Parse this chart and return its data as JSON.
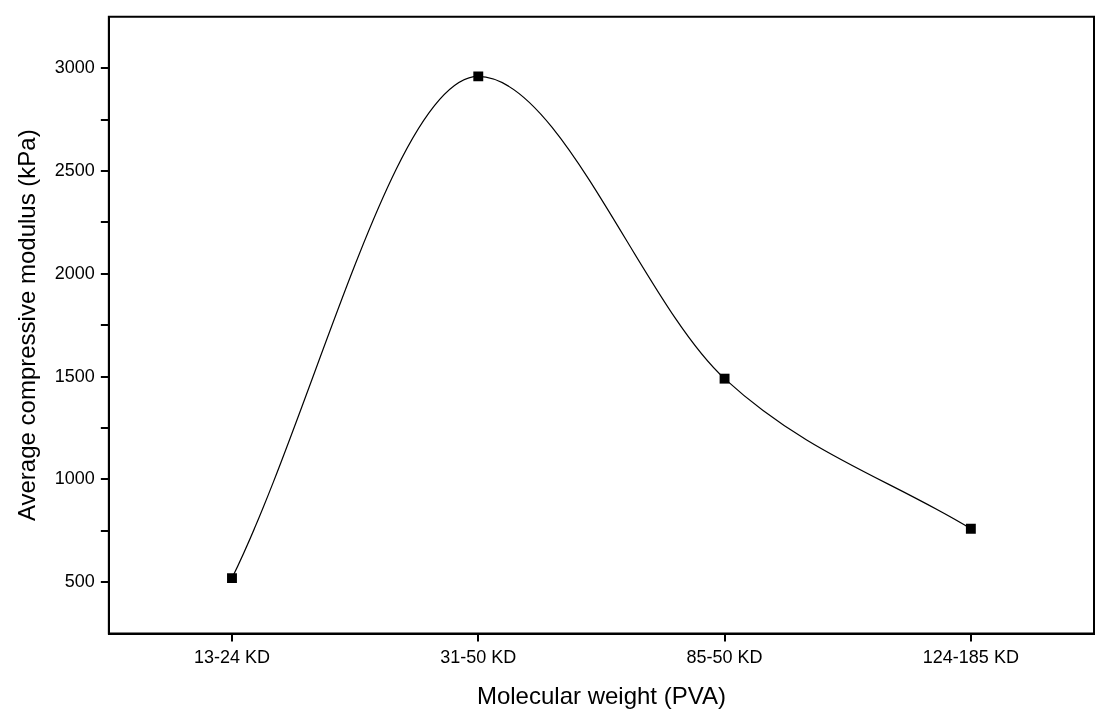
{
  "chart_data": {
    "type": "line",
    "xlabel": "Molecular weight (PVA)",
    "ylabel": "Average compressive modulus (kPa)",
    "categories": [
      "13-24 KD",
      "31-50 KD",
      "85-50 KD",
      "124-185 KD"
    ],
    "series": [
      {
        "color": "#000000",
        "values": [
          520,
          2960,
          1490,
          760
        ]
      }
    ],
    "ylim": [
      250,
      3250
    ],
    "yticks": [
      500,
      {
        "value": 750,
        "label": null
      },
      1000,
      {
        "value": 1250,
        "label": null
      },
      1500,
      {
        "value": 1750,
        "label": null
      },
      2000,
      {
        "value": 2250,
        "label": null
      },
      2500,
      {
        "value": 2750,
        "label": null
      },
      3000
    ],
    "marker": "square",
    "grid": false,
    "legend": false
  }
}
